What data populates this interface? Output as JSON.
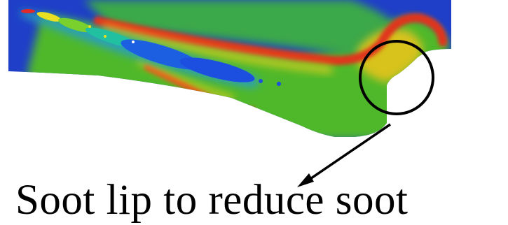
{
  "caption": "Soot lip to reduce soot",
  "colors": {
    "background_field": "#1f3fc8",
    "mid_field": "#4fb82c",
    "hot_band": "#e0361a",
    "warm_band": "#f2d21c",
    "particles": "#1c4fe0",
    "annotation": "#000000"
  },
  "icons": {
    "highlight": "circle-outline",
    "pointer": "arrow"
  }
}
